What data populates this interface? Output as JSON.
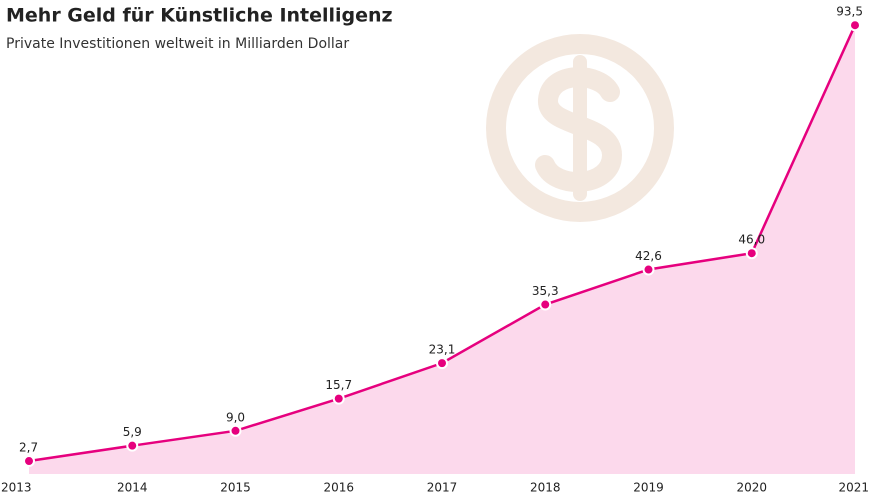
{
  "chart_data": {
    "type": "line",
    "title": "Mehr Geld für Künstliche Intelligenz",
    "subtitle": "Private Investitionen weltweit in Milliarden Dollar",
    "categories": [
      "2013",
      "2014",
      "2015",
      "2016",
      "2017",
      "2018",
      "2019",
      "2020",
      "2021"
    ],
    "values": [
      2.7,
      5.9,
      9.0,
      15.7,
      23.1,
      35.3,
      42.6,
      46.0,
      93.5
    ],
    "value_labels": [
      "2,7",
      "5,9",
      "9,0",
      "15,7",
      "23,1",
      "35,3",
      "42,6",
      "46,0",
      "93,5"
    ],
    "color": "#e6007e",
    "area_color": "#fcd9ec",
    "ylim": [
      0,
      95
    ]
  }
}
